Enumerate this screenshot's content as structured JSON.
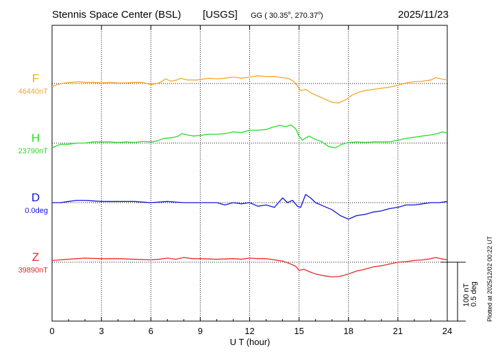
{
  "header": {
    "station": "Stennis Space Center (BSL)",
    "network": "[USGS]",
    "coords_prefix": "GG ( 30.35",
    "coords_mid": ", 270.37",
    "coords_suffix": ")",
    "degree_mark": "o",
    "date": "2025/11/23"
  },
  "side_note": "Plotted at 2025/12/02 00:22 UT",
  "scale_bar": {
    "line1": "100 nT",
    "line2": "0.5 deg"
  },
  "chart_data": {
    "type": "line",
    "xlabel": "U T (hour)",
    "xlim": [
      0,
      24
    ],
    "xticks": [
      0,
      3,
      6,
      9,
      12,
      15,
      18,
      21,
      24
    ],
    "grid": true,
    "scale_nT": 100,
    "scale_deg": 0.5,
    "series": [
      {
        "name": "F",
        "baseline_label": "46440nT",
        "color": "#f5a623",
        "x": [
          0,
          0.4,
          0.8,
          1.2,
          1.6,
          2.0,
          2.5,
          3.0,
          3.5,
          4.0,
          4.5,
          5.0,
          5.5,
          6.0,
          6.4,
          6.7,
          6.9,
          7.2,
          7.6,
          7.8,
          8.2,
          8.8,
          9.5,
          10.0,
          10.5,
          11.0,
          11.5,
          12.0,
          12.5,
          13.0,
          13.5,
          14.0,
          14.4,
          14.7,
          14.9,
          15.1,
          15.4,
          15.8,
          16.2,
          16.6,
          17.0,
          17.4,
          17.8,
          18.2,
          18.6,
          19.0,
          19.5,
          20.0,
          20.5,
          21.0,
          21.5,
          22.0,
          22.5,
          23.0,
          23.3,
          23.6,
          24.0
        ],
        "y": [
          -5,
          -1,
          1,
          2,
          3,
          2,
          2,
          1,
          2,
          1,
          1,
          2,
          2,
          -2,
          0,
          4,
          8,
          4,
          6,
          9,
          6,
          6,
          9,
          8,
          9,
          11,
          9,
          11,
          13,
          12,
          12,
          10,
          8,
          3,
          -4,
          -12,
          -10,
          -17,
          -22,
          -27,
          -32,
          -33,
          -28,
          -20,
          -15,
          -12,
          -10,
          -8,
          -6,
          -3,
          1,
          3,
          4,
          6,
          10,
          8,
          6
        ]
      },
      {
        "name": "H",
        "baseline_label": "23790nT",
        "color": "#22dd22",
        "x": [
          0,
          0.5,
          1.0,
          1.5,
          2.0,
          2.5,
          3.0,
          3.5,
          4.0,
          4.5,
          5.0,
          5.5,
          6.0,
          6.4,
          6.8,
          7.2,
          7.6,
          7.9,
          8.2,
          8.6,
          9.0,
          9.5,
          10.0,
          10.5,
          11.0,
          11.5,
          12.0,
          12.5,
          13.0,
          13.4,
          13.8,
          14.2,
          14.5,
          14.8,
          15.0,
          15.2,
          15.6,
          16.0,
          16.4,
          16.8,
          17.2,
          17.6,
          18.0,
          18.5,
          19.0,
          19.5,
          20.0,
          20.5,
          21.0,
          21.5,
          22.0,
          22.5,
          23.0,
          23.4,
          23.7,
          24.0
        ],
        "y": [
          -8,
          -2,
          -2,
          0,
          0,
          2,
          2,
          2,
          1,
          2,
          1,
          3,
          2,
          4,
          8,
          9,
          11,
          16,
          14,
          12,
          13,
          15,
          15,
          16,
          19,
          18,
          22,
          22,
          23,
          27,
          30,
          28,
          31,
          24,
          12,
          5,
          12,
          6,
          2,
          -6,
          -8,
          -2,
          1,
          2,
          1,
          2,
          2,
          2,
          5,
          8,
          10,
          12,
          14,
          16,
          19,
          17
        ]
      },
      {
        "name": "D",
        "baseline_label": "0.0deg",
        "color": "#1010dd",
        "x": [
          0,
          0.5,
          1.0,
          1.5,
          2.0,
          3.0,
          4.0,
          5.0,
          6.0,
          7.0,
          8.0,
          9.0,
          10.0,
          10.5,
          11.0,
          11.5,
          12.0,
          12.5,
          13.0,
          13.5,
          14.0,
          14.3,
          14.6,
          14.9,
          15.1,
          15.4,
          15.7,
          16.0,
          16.5,
          17.0,
          17.5,
          18.0,
          18.5,
          19.0,
          19.5,
          20.0,
          20.5,
          21.0,
          21.5,
          22.0,
          22.5,
          23.0,
          23.5,
          24.0
        ],
        "y": [
          0.0,
          0.0,
          0.01,
          0.02,
          0.02,
          0.01,
          0.01,
          0.01,
          0.0,
          0.01,
          0.0,
          0.0,
          0.0,
          -0.02,
          0.0,
          -0.01,
          0.0,
          -0.03,
          -0.02,
          -0.04,
          0.04,
          0.0,
          0.02,
          -0.03,
          -0.04,
          0.07,
          0.04,
          0.0,
          -0.03,
          -0.06,
          -0.11,
          -0.14,
          -0.11,
          -0.1,
          -0.08,
          -0.07,
          -0.05,
          -0.04,
          -0.02,
          -0.02,
          -0.01,
          0.0,
          0.0,
          0.01
        ]
      },
      {
        "name": "Z",
        "baseline_label": "39890nT",
        "color": "#ee2222",
        "x": [
          0,
          0.5,
          1.0,
          1.5,
          2.0,
          3.0,
          4.0,
          5.0,
          6.0,
          6.5,
          7.0,
          7.5,
          8.0,
          8.5,
          9.0,
          10.0,
          11.0,
          11.5,
          12.0,
          12.5,
          13.0,
          13.5,
          14.0,
          14.4,
          14.8,
          15.0,
          15.3,
          15.7,
          16.0,
          16.5,
          17.0,
          17.5,
          18.0,
          18.5,
          19.0,
          19.5,
          20.0,
          20.5,
          21.0,
          21.5,
          22.0,
          22.5,
          23.0,
          23.3,
          23.6,
          24.0
        ],
        "y": [
          3,
          4,
          5,
          6,
          7,
          6,
          6,
          5,
          4,
          5,
          7,
          5,
          8,
          6,
          6,
          5,
          6,
          5,
          7,
          6,
          6,
          4,
          2,
          -2,
          -7,
          -14,
          -12,
          -17,
          -20,
          -23,
          -25,
          -24,
          -20,
          -15,
          -12,
          -8,
          -6,
          -3,
          0,
          1,
          3,
          4,
          6,
          8,
          6,
          4
        ]
      }
    ]
  }
}
